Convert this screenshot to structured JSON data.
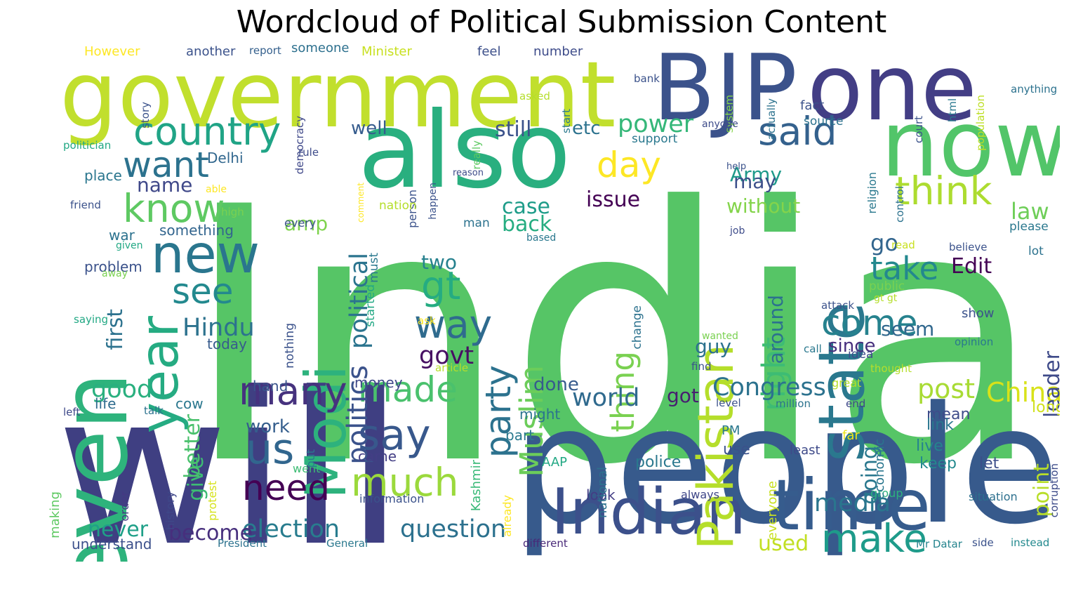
{
  "title": "Wordcloud of Political Submission Content",
  "words": [
    {
      "text": "India",
      "color": "#56c566"
    },
    {
      "text": "will",
      "color": "#3f3f82"
    },
    {
      "text": "people",
      "color": "#375a8c"
    },
    {
      "text": "government",
      "color": "#c1df2d"
    },
    {
      "text": "BJP",
      "color": "#3b528b"
    },
    {
      "text": "one",
      "color": "#433e85"
    },
    {
      "text": "also",
      "color": "#29af7f"
    },
    {
      "text": "now",
      "color": "#52c569"
    },
    {
      "text": "even",
      "color": "#2eb37c"
    },
    {
      "text": "Indian",
      "color": "#3c508b"
    },
    {
      "text": "time",
      "color": "#365c8d"
    },
    {
      "text": "state",
      "color": "#2a788e"
    },
    {
      "text": "Pakistan",
      "color": "#b5de2b"
    },
    {
      "text": "year",
      "color": "#25ab82"
    },
    {
      "text": "new",
      "color": "#2a768e"
    },
    {
      "text": "country",
      "color": "#20a486"
    },
    {
      "text": "Modi",
      "color": "#2db27d"
    },
    {
      "text": "think",
      "color": "#addc30"
    },
    {
      "text": "said",
      "color": "#34618d"
    },
    {
      "text": "know",
      "color": "#5ec962"
    },
    {
      "text": "want",
      "color": "#2c728e"
    },
    {
      "text": "many",
      "color": "#46327e"
    },
    {
      "text": "us",
      "color": "#31668e"
    },
    {
      "text": "need",
      "color": "#440154"
    },
    {
      "text": "say",
      "color": "#38588c"
    },
    {
      "text": "made",
      "color": "#4ac16d"
    },
    {
      "text": "much",
      "color": "#9bd93c"
    },
    {
      "text": "make",
      "color": "#1e9b8a"
    },
    {
      "text": "way",
      "color": "#2f6b8e"
    },
    {
      "text": "gt",
      "color": "#25ac82"
    },
    {
      "text": "party",
      "color": "#2c728e"
    },
    {
      "text": "Muslim",
      "color": "#6ccd5a"
    },
    {
      "text": "come",
      "color": "#26828e"
    },
    {
      "text": "take",
      "color": "#23888e"
    },
    {
      "text": "right",
      "color": "#3dbc74"
    },
    {
      "text": "see",
      "color": "#23898e"
    },
    {
      "text": "day",
      "color": "#fde725"
    },
    {
      "text": "thing",
      "color": "#7ad151"
    },
    {
      "text": "politics",
      "color": "#3b528b"
    },
    {
      "text": "political",
      "color": "#2b748e"
    },
    {
      "text": "post",
      "color": "#a8db34"
    },
    {
      "text": "China",
      "color": "#d8e219"
    },
    {
      "text": "Congress",
      "color": "#2c728e"
    },
    {
      "text": "election",
      "color": "#287c8e"
    },
    {
      "text": "question",
      "color": "#2c718e"
    },
    {
      "text": "good",
      "color": "#2ab07f"
    },
    {
      "text": "power",
      "color": "#35b779"
    },
    {
      "text": "Hindu",
      "color": "#2c728e"
    },
    {
      "text": "govt",
      "color": "#471063"
    },
    {
      "text": "world",
      "color": "#306a8e"
    },
    {
      "text": "media",
      "color": "#2a768e"
    },
    {
      "text": "used",
      "color": "#c2df23"
    },
    {
      "text": "become",
      "color": "#472f7d"
    },
    {
      "text": "never",
      "color": "#1fa088"
    },
    {
      "text": "still",
      "color": "#3b528b"
    },
    {
      "text": "Army",
      "color": "#1f9a8a"
    },
    {
      "text": "law",
      "color": "#6ece58"
    },
    {
      "text": "go",
      "color": "#32658e"
    },
    {
      "text": "case",
      "color": "#1e9c89"
    },
    {
      "text": "back",
      "color": "#26ad81"
    },
    {
      "text": "Edit",
      "color": "#440154"
    },
    {
      "text": "issue",
      "color": "#440154"
    },
    {
      "text": "first",
      "color": "#2c728e"
    },
    {
      "text": "give",
      "color": "#3dbc74"
    },
    {
      "text": "better",
      "color": "#4ac16d"
    },
    {
      "text": "going",
      "color": "#2a788e"
    },
    {
      "text": "point",
      "color": "#b8de29"
    },
    {
      "text": "leader",
      "color": "#3e4a89"
    },
    {
      "text": "around",
      "color": "#2c718e"
    },
    {
      "text": "may",
      "color": "#3c4f8a"
    },
    {
      "text": "without",
      "color": "#84d44b"
    },
    {
      "text": "amp",
      "color": "#7fd34e"
    },
    {
      "text": "name",
      "color": "#3f4889"
    },
    {
      "text": "seem",
      "color": "#31688e"
    },
    {
      "text": "since",
      "color": "#472f7d"
    },
    {
      "text": "guy",
      "color": "#2c718e"
    },
    {
      "text": "got",
      "color": "#481f70"
    },
    {
      "text": "two",
      "color": "#26818e"
    },
    {
      "text": "done",
      "color": "#375b8d"
    },
    {
      "text": "etc",
      "color": "#2c728e"
    },
    {
      "text": "well",
      "color": "#365c8d"
    },
    {
      "text": "work",
      "color": "#355e8d"
    },
    {
      "text": "long",
      "color": "#d0e11c"
    },
    {
      "text": "mean",
      "color": "#3e4c8a"
    },
    {
      "text": "link",
      "color": "#2a768e"
    },
    {
      "text": "live",
      "color": "#25838e"
    },
    {
      "text": "keep",
      "color": "#23898e"
    },
    {
      "text": "let",
      "color": "#3d4e8a"
    },
    {
      "text": "police",
      "color": "#2a788e"
    },
    {
      "text": "use",
      "color": "#3b528b"
    },
    {
      "text": "look",
      "color": "#433d84"
    },
    {
      "text": "life",
      "color": "#2f6c8e"
    },
    {
      "text": "cow",
      "color": "#2a778e"
    },
    {
      "text": "money",
      "color": "#3f4889"
    },
    {
      "text": "might",
      "color": "#2b748e"
    },
    {
      "text": "part",
      "color": "#2a788e"
    },
    {
      "text": "came",
      "color": "#433e85"
    },
    {
      "text": "hand",
      "color": "#3a548c"
    },
    {
      "text": "today",
      "color": "#375b8d"
    },
    {
      "text": "problem",
      "color": "#3b528b"
    },
    {
      "text": "place",
      "color": "#2a768e"
    },
    {
      "text": "war",
      "color": "#2c728e"
    },
    {
      "text": "something",
      "color": "#32658e"
    },
    {
      "text": "Delhi",
      "color": "#31678e"
    },
    {
      "text": "understand",
      "color": "#3c508b"
    },
    {
      "text": "making",
      "color": "#5ec962"
    },
    {
      "text": "history",
      "color": "#3f4889"
    },
    {
      "text": "order",
      "color": "#443983"
    },
    {
      "text": "protest",
      "color": "#d5e21a"
    },
    {
      "text": "went",
      "color": "#3dbc74"
    },
    {
      "text": "put",
      "color": "#2a788e"
    },
    {
      "text": "Kashmir",
      "color": "#38b977"
    },
    {
      "text": "information",
      "color": "#3b528b"
    },
    {
      "text": "already",
      "color": "#fde725"
    },
    {
      "text": "national",
      "color": "#2d718e"
    },
    {
      "text": "always",
      "color": "#3f4788"
    },
    {
      "text": "everyone",
      "color": "#c8e020"
    },
    {
      "text": "least",
      "color": "#3e4a89"
    },
    {
      "text": "group",
      "color": "#2db27d"
    },
    {
      "text": "situation",
      "color": "#2d708e"
    },
    {
      "text": "corruption",
      "color": "#3e4c8a"
    },
    {
      "text": "Mr Datar",
      "color": "#25848e"
    },
    {
      "text": "side",
      "color": "#3b528b"
    },
    {
      "text": "instead",
      "color": "#23898e"
    },
    {
      "text": "different",
      "color": "#482878"
    },
    {
      "text": "General",
      "color": "#2a788e"
    },
    {
      "text": "President",
      "color": "#2c728e"
    },
    {
      "text": "AAP",
      "color": "#22a884"
    },
    {
      "text": "PM",
      "color": "#2a788e"
    },
    {
      "text": "far",
      "color": "#ece51b"
    },
    {
      "text": "million",
      "color": "#2c738e"
    },
    {
      "text": "end",
      "color": "#3f4889"
    },
    {
      "text": "level",
      "color": "#3b528b"
    },
    {
      "text": "economic",
      "color": "#2a768e"
    },
    {
      "text": "great",
      "color": "#b5de2b"
    },
    {
      "text": "left",
      "color": "#3e4989"
    },
    {
      "text": "talk",
      "color": "#2c728e"
    },
    {
      "text": "However",
      "color": "#fde725"
    },
    {
      "text": "another",
      "color": "#3b528b"
    },
    {
      "text": "report",
      "color": "#35608d"
    },
    {
      "text": "someone",
      "color": "#2d708e"
    },
    {
      "text": "Minister",
      "color": "#c8e020"
    },
    {
      "text": "feel",
      "color": "#3c4f8a"
    },
    {
      "text": "number",
      "color": "#3e4c8a"
    },
    {
      "text": "democracy",
      "color": "#3f4889"
    },
    {
      "text": "story",
      "color": "#3b528b"
    },
    {
      "text": "asked",
      "color": "#b5de2b"
    },
    {
      "text": "bank",
      "color": "#3b528b"
    },
    {
      "text": "start",
      "color": "#2a788e"
    },
    {
      "text": "system",
      "color": "#84d44b"
    },
    {
      "text": "actually",
      "color": "#2c728e"
    },
    {
      "text": "population",
      "color": "#bddf26"
    },
    {
      "text": "anything",
      "color": "#2c728e"
    },
    {
      "text": "html",
      "color": "#2a788e"
    },
    {
      "text": "court",
      "color": "#3b528b"
    },
    {
      "text": "fact",
      "color": "#3b528b"
    },
    {
      "text": "source",
      "color": "#2c728e"
    },
    {
      "text": "anyone",
      "color": "#3e4c8a"
    },
    {
      "text": "support",
      "color": "#2a788e"
    },
    {
      "text": "comment",
      "color": "#fde725"
    },
    {
      "text": "really",
      "color": "#5ec962"
    },
    {
      "text": "person",
      "color": "#3b528b"
    },
    {
      "text": "happen",
      "color": "#3b528b"
    },
    {
      "text": "reason",
      "color": "#3e4c8a"
    },
    {
      "text": "help",
      "color": "#3b528b"
    },
    {
      "text": "religion",
      "color": "#2a788e"
    },
    {
      "text": "control",
      "color": "#2c728e"
    },
    {
      "text": "politician",
      "color": "#22a884"
    },
    {
      "text": "rule",
      "color": "#3e4c8a"
    },
    {
      "text": "friend",
      "color": "#3b528b"
    },
    {
      "text": "able",
      "color": "#fde725"
    },
    {
      "text": "high",
      "color": "#7ad151"
    },
    {
      "text": "nation",
      "color": "#b5de2b"
    },
    {
      "text": "man",
      "color": "#2c728e"
    },
    {
      "text": "every",
      "color": "#3b528b"
    },
    {
      "text": "given",
      "color": "#22a884"
    },
    {
      "text": "based",
      "color": "#2a788e"
    },
    {
      "text": "away",
      "color": "#7ad151"
    },
    {
      "text": "saying",
      "color": "#22a884"
    },
    {
      "text": "must",
      "color": "#2a788e"
    },
    {
      "text": "started",
      "color": "#22a884"
    },
    {
      "text": "nothing",
      "color": "#3b528b"
    },
    {
      "text": "change",
      "color": "#2c728e"
    },
    {
      "text": "ask",
      "color": "#fde725"
    },
    {
      "text": "article",
      "color": "#b5de2b"
    },
    {
      "text": "please",
      "color": "#2a788e"
    },
    {
      "text": "job",
      "color": "#3e4c8a"
    },
    {
      "text": "lot",
      "color": "#2c728e"
    },
    {
      "text": "read",
      "color": "#c8e020"
    },
    {
      "text": "believe",
      "color": "#3b528b"
    },
    {
      "text": "public",
      "color": "#7ad151"
    },
    {
      "text": "attack",
      "color": "#3b528b"
    },
    {
      "text": "gt gt",
      "color": "#b5de2b"
    },
    {
      "text": "show",
      "color": "#3b528b"
    },
    {
      "text": "opinion",
      "color": "#2a788e"
    },
    {
      "text": "wanted",
      "color": "#7ad151"
    },
    {
      "text": "call",
      "color": "#2a788e"
    },
    {
      "text": "idea",
      "color": "#3e4c8a"
    },
    {
      "text": "find",
      "color": "#3b528b"
    },
    {
      "text": "thought",
      "color": "#b5de2b"
    }
  ]
}
